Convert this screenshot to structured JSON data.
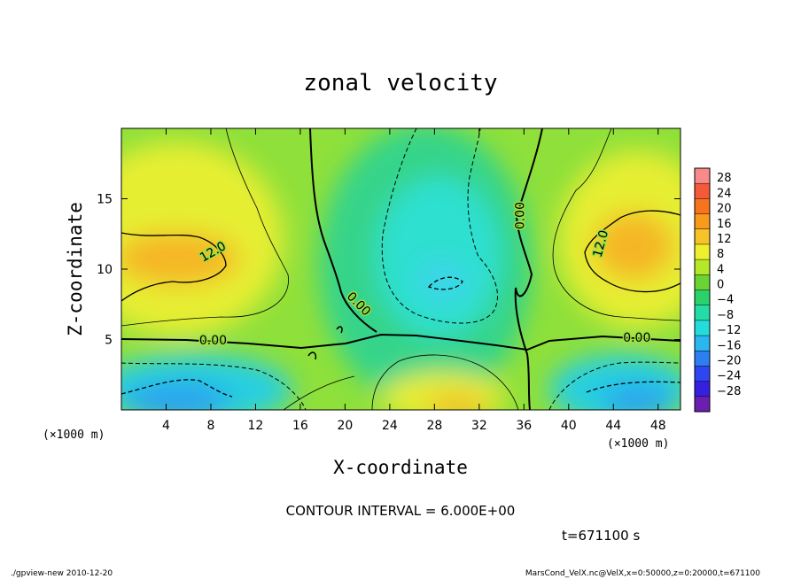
{
  "chart_data": {
    "type": "heatmap",
    "title": "zonal velocity",
    "xlabel": "X-coordinate",
    "ylabel": "Z-coordinate",
    "x_unit": "(×1000 m)",
    "y_unit": "(×1000 m)",
    "xlim": [
      0,
      50
    ],
    "ylim": [
      0,
      20
    ],
    "x_ticks": [
      4,
      8,
      12,
      16,
      20,
      24,
      28,
      32,
      36,
      40,
      44,
      48
    ],
    "y_ticks": [
      5,
      10,
      15
    ],
    "colorbar": {
      "levels": [
        28,
        24,
        20,
        16,
        12,
        8,
        4,
        0,
        -4,
        -8,
        -12,
        -16,
        -20,
        -24,
        -28
      ],
      "colors": [
        "#f98a8a",
        "#f45a3a",
        "#f7741e",
        "#f99a1c",
        "#f6c329",
        "#eef02d",
        "#b6e82a",
        "#6cd335",
        "#2bd26c",
        "#23dca8",
        "#24dcdc",
        "#2ab6ee",
        "#2d7ff0",
        "#2e46f2",
        "#3520e0",
        "#6a1fb0"
      ]
    },
    "contour_labels": [
      {
        "text": "12.0",
        "x": 8.2,
        "z": 11.2,
        "angle": -30
      },
      {
        "text": "12.0",
        "x": 42.9,
        "z": 11.8,
        "angle": -75
      },
      {
        "text": "0.00",
        "x": 8.2,
        "z": 4.9,
        "angle": 0
      },
      {
        "text": "0.00",
        "x": 46.1,
        "z": 5.1,
        "angle": 0
      },
      {
        "text": "0.00",
        "x": 21.2,
        "z": 7.5,
        "angle": 45
      },
      {
        "text": "0.00",
        "x": 35.7,
        "z": 13.8,
        "angle": -90
      }
    ],
    "contour_interval_text": "CONTOUR INTERVAL = 6.000E+00",
    "time_text": "t=671100 s"
  },
  "footer": {
    "left": "./gpview-new  2010-12-20",
    "right": "MarsCond_VelX.nc@VelX,x=0:50000,z=0:20000,t=671100"
  }
}
